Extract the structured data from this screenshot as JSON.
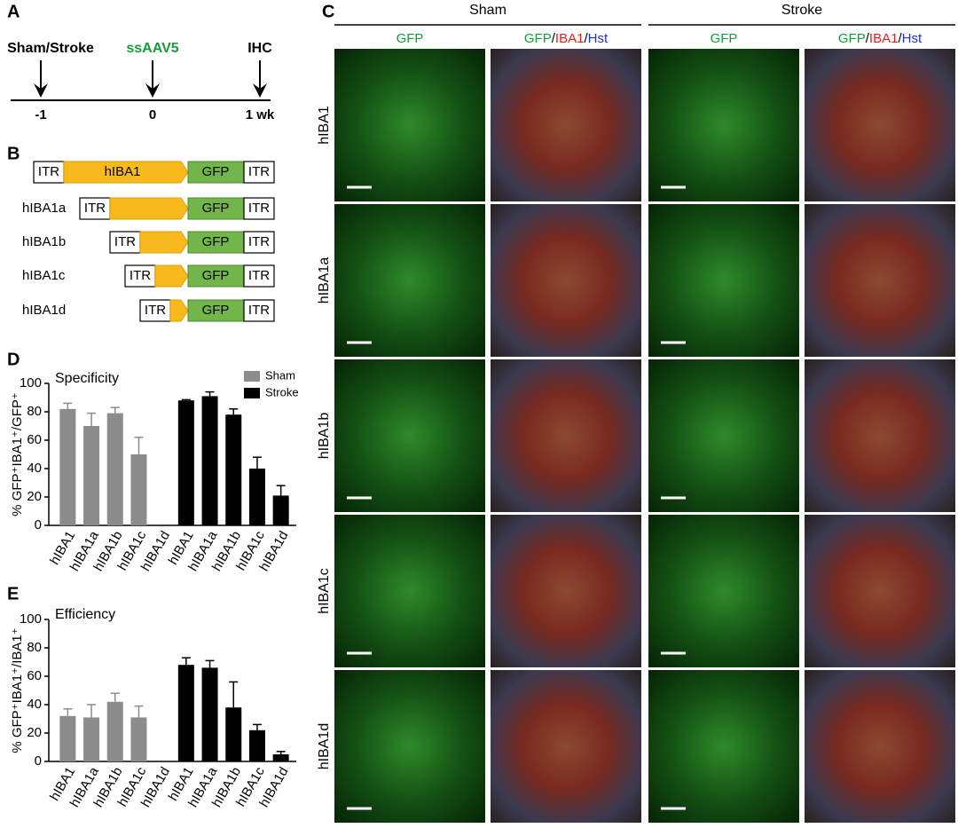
{
  "panel_labels": [
    "A",
    "B",
    "C",
    "D",
    "E"
  ],
  "timeline": {
    "events": [
      {
        "label": "Sham/Stroke",
        "time": "-1",
        "color": "#000000"
      },
      {
        "label": "ssAAV5",
        "time": "0",
        "color": "#1a9a3a"
      },
      {
        "label": "IHC",
        "time": "1 wk",
        "color": "#000000"
      }
    ]
  },
  "constructs": [
    {
      "elements": [
        "ITR",
        "hIBA1",
        "GFP",
        "ITR"
      ]
    },
    {
      "name": "hIBA1a",
      "elements": [
        "ITR",
        "GFP",
        "ITR"
      ]
    },
    {
      "name": "hIBA1b",
      "elements": [
        "ITR",
        "GFP",
        "ITR"
      ]
    },
    {
      "name": "hIBA1c",
      "elements": [
        "ITR",
        "GFP",
        "ITR"
      ]
    },
    {
      "name": "hIBA1d",
      "elements": [
        "ITR",
        "GFP",
        "ITR"
      ]
    }
  ],
  "micrographs": {
    "groups": [
      "Sham",
      "Stroke"
    ],
    "columns": [
      {
        "parts": [
          {
            "text": "GFP",
            "color": "#1a9a3a"
          }
        ]
      },
      {
        "parts": [
          {
            "text": "GFP",
            "color": "#1a9a3a"
          },
          {
            "text": "/",
            "color": "#000000"
          },
          {
            "text": "IBA1",
            "color": "#e02020"
          },
          {
            "text": "/",
            "color": "#000000"
          },
          {
            "text": "Hst",
            "color": "#2030d0"
          }
        ]
      }
    ],
    "rows": [
      "hIBA1",
      "hIBA1a",
      "hIBA1b",
      "hIBA1c",
      "hIBA1d"
    ]
  },
  "chart_data": [
    {
      "type": "bar",
      "annotation": "Specificity",
      "y_label": "% GFP⁺IBA1⁺/GFP⁺",
      "categories": [
        "hIBA1",
        "hIBA1a",
        "hIBA1b",
        "hIBA1c",
        "hIBA1d",
        "hIBA1",
        "hIBA1a",
        "hIBA1b",
        "hIBA1c",
        "hIBA1d"
      ],
      "ylim": [
        0,
        100
      ],
      "yticks": [
        0,
        20,
        40,
        60,
        80,
        100
      ],
      "legend": "top-right",
      "series": [
        {
          "name": "Sham",
          "color": "#8c8c8c",
          "values": [
            82,
            70,
            79,
            50,
            null,
            null,
            null,
            null,
            null,
            null
          ],
          "errors": [
            4,
            9,
            4,
            12,
            null,
            null,
            null,
            null,
            null,
            null
          ]
        },
        {
          "name": "Stroke",
          "color": "#000000",
          "values": [
            null,
            null,
            null,
            null,
            null,
            88,
            91,
            78,
            40,
            21
          ],
          "errors": [
            null,
            null,
            null,
            null,
            null,
            0.5,
            3,
            4,
            8,
            7
          ]
        }
      ]
    },
    {
      "type": "bar",
      "annotation": "Efficiency",
      "y_label": "% GFP⁺IBA1⁺/IBA1⁺",
      "categories": [
        "hIBA1",
        "hIBA1a",
        "hIBA1b",
        "hIBA1c",
        "hIBA1d",
        "hIBA1",
        "hIBA1a",
        "hIBA1b",
        "hIBA1c",
        "hIBA1d"
      ],
      "ylim": [
        0,
        100
      ],
      "yticks": [
        0,
        20,
        40,
        60,
        80,
        100
      ],
      "series": [
        {
          "color": "#8c8c8c",
          "values": [
            32,
            31,
            42,
            31,
            null,
            null,
            null,
            null,
            null,
            null
          ],
          "errors": [
            5,
            9,
            6,
            8,
            null,
            null,
            null,
            null,
            null,
            null
          ]
        },
        {
          "color": "#000000",
          "values": [
            null,
            null,
            null,
            null,
            null,
            68,
            66,
            38,
            22,
            5
          ],
          "errors": [
            null,
            null,
            null,
            null,
            null,
            5,
            5,
            18,
            4,
            2
          ]
        }
      ]
    }
  ]
}
